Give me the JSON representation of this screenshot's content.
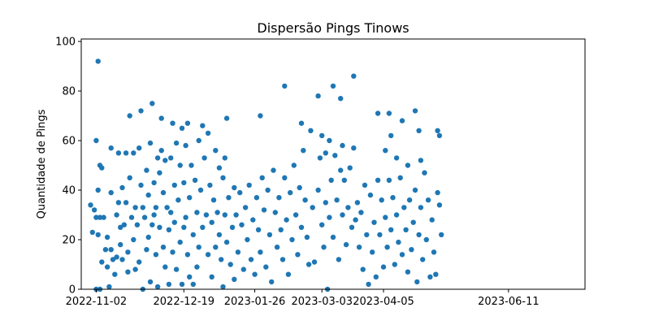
{
  "chart_data": {
    "type": "scatter",
    "title": "Dispersão Pings Tinows",
    "xlabel": "",
    "ylabel": "Quantidade de Pings",
    "x_type": "date",
    "xlim": [
      "2022-10-25",
      "2023-07-22"
    ],
    "ylim": [
      0,
      101
    ],
    "x_ticks": [
      "2022-11-02",
      "2022-12-19",
      "2023-01-26",
      "2023-03-03",
      "2023-04-05",
      "2023-06-11"
    ],
    "y_ticks": [
      0,
      20,
      40,
      60,
      80,
      100
    ],
    "grid": false,
    "legend": "none",
    "marker_color": "#1f77b4",
    "series": [
      {
        "points": [
          [
            "2022-10-30",
            34
          ],
          [
            "2022-10-31",
            23
          ],
          [
            "2022-11-01",
            32
          ],
          [
            "2022-11-02",
            60
          ],
          [
            "2022-11-02",
            29
          ],
          [
            "2022-11-02",
            0
          ],
          [
            "2022-11-03",
            40
          ],
          [
            "2022-11-03",
            92
          ],
          [
            "2022-11-03",
            22
          ],
          [
            "2022-11-04",
            50
          ],
          [
            "2022-11-04",
            29
          ],
          [
            "2022-11-04",
            0
          ],
          [
            "2022-11-05",
            49
          ],
          [
            "2022-11-05",
            11
          ],
          [
            "2022-11-06",
            29
          ],
          [
            "2022-11-07",
            16
          ],
          [
            "2022-11-08",
            9
          ],
          [
            "2022-11-08",
            21
          ],
          [
            "2022-11-09",
            1
          ],
          [
            "2022-11-10",
            57
          ],
          [
            "2022-11-10",
            39
          ],
          [
            "2022-11-10",
            16
          ],
          [
            "2022-11-11",
            12
          ],
          [
            "2022-11-12",
            6
          ],
          [
            "2022-11-13",
            30
          ],
          [
            "2022-11-13",
            13
          ],
          [
            "2022-11-14",
            55
          ],
          [
            "2022-11-14",
            35
          ],
          [
            "2022-11-15",
            25
          ],
          [
            "2022-11-15",
            18
          ],
          [
            "2022-11-16",
            41
          ],
          [
            "2022-11-16",
            12
          ],
          [
            "2022-11-17",
            26
          ],
          [
            "2022-11-18",
            55
          ],
          [
            "2022-11-18",
            35
          ],
          [
            "2022-11-19",
            15
          ],
          [
            "2022-11-19",
            7
          ],
          [
            "2022-11-20",
            70
          ],
          [
            "2022-11-20",
            45
          ],
          [
            "2022-11-21",
            29
          ],
          [
            "2022-11-22",
            55
          ],
          [
            "2022-11-22",
            20
          ],
          [
            "2022-11-23",
            33
          ],
          [
            "2022-11-23",
            8
          ],
          [
            "2022-11-24",
            26
          ],
          [
            "2022-11-25",
            57
          ],
          [
            "2022-11-25",
            11
          ],
          [
            "2022-11-26",
            72
          ],
          [
            "2022-11-26",
            42
          ],
          [
            "2022-11-27",
            33
          ],
          [
            "2022-11-27",
            0
          ],
          [
            "2022-11-28",
            29
          ],
          [
            "2022-11-29",
            48
          ],
          [
            "2022-11-29",
            16
          ],
          [
            "2022-11-30",
            38
          ],
          [
            "2022-11-30",
            21
          ],
          [
            "2022-12-01",
            59
          ],
          [
            "2022-12-01",
            3
          ],
          [
            "2022-12-02",
            75
          ],
          [
            "2022-12-02",
            26
          ],
          [
            "2022-12-03",
            43
          ],
          [
            "2022-12-03",
            30
          ],
          [
            "2022-12-04",
            33
          ],
          [
            "2022-12-04",
            14
          ],
          [
            "2022-12-05",
            53
          ],
          [
            "2022-12-05",
            1
          ],
          [
            "2022-12-06",
            47
          ],
          [
            "2022-12-06",
            25
          ],
          [
            "2022-12-07",
            69
          ],
          [
            "2022-12-07",
            56
          ],
          [
            "2022-12-08",
            39
          ],
          [
            "2022-12-08",
            17
          ],
          [
            "2022-12-09",
            52
          ],
          [
            "2022-12-09",
            9
          ],
          [
            "2022-12-10",
            33
          ],
          [
            "2022-12-11",
            24
          ],
          [
            "2022-12-11",
            2
          ],
          [
            "2022-12-12",
            53
          ],
          [
            "2022-12-12",
            31
          ],
          [
            "2022-12-13",
            67
          ],
          [
            "2022-12-13",
            15
          ],
          [
            "2022-12-14",
            42
          ],
          [
            "2022-12-14",
            27
          ],
          [
            "2022-12-15",
            59
          ],
          [
            "2022-12-15",
            8
          ],
          [
            "2022-12-16",
            36
          ],
          [
            "2022-12-17",
            50
          ],
          [
            "2022-12-17",
            19
          ],
          [
            "2022-12-18",
            65
          ],
          [
            "2022-12-18",
            2
          ],
          [
            "2022-12-19",
            43
          ],
          [
            "2022-12-19",
            25
          ],
          [
            "2022-12-20",
            58
          ],
          [
            "2022-12-20",
            29
          ],
          [
            "2022-12-21",
            67
          ],
          [
            "2022-12-21",
            14
          ],
          [
            "2022-12-22",
            37
          ],
          [
            "2022-12-22",
            5
          ],
          [
            "2022-12-23",
            50
          ],
          [
            "2022-12-24",
            22
          ],
          [
            "2022-12-24",
            2
          ],
          [
            "2022-12-25",
            44
          ],
          [
            "2022-12-26",
            31
          ],
          [
            "2022-12-26",
            9
          ],
          [
            "2022-12-27",
            60
          ],
          [
            "2022-12-27",
            17
          ],
          [
            "2022-12-28",
            40
          ],
          [
            "2022-12-29",
            66
          ],
          [
            "2022-12-29",
            25
          ],
          [
            "2022-12-30",
            53
          ],
          [
            "2022-12-31",
            30
          ],
          [
            "2023-01-01",
            63
          ],
          [
            "2023-01-01",
            14
          ],
          [
            "2023-01-02",
            42
          ],
          [
            "2023-01-03",
            5
          ],
          [
            "2023-01-03",
            27
          ],
          [
            "2023-01-04",
            36
          ],
          [
            "2023-01-05",
            56
          ],
          [
            "2023-01-05",
            17
          ],
          [
            "2023-01-06",
            31
          ],
          [
            "2023-01-07",
            49
          ],
          [
            "2023-01-07",
            22
          ],
          [
            "2023-01-08",
            12
          ],
          [
            "2023-01-09",
            45
          ],
          [
            "2023-01-09",
            1
          ],
          [
            "2023-01-10",
            53
          ],
          [
            "2023-01-10",
            30
          ],
          [
            "2023-01-11",
            69
          ],
          [
            "2023-01-11",
            19
          ],
          [
            "2023-01-12",
            37
          ],
          [
            "2023-01-13",
            10
          ],
          [
            "2023-01-14",
            25
          ],
          [
            "2023-01-15",
            41
          ],
          [
            "2023-01-15",
            4
          ],
          [
            "2023-01-16",
            30
          ],
          [
            "2023-01-17",
            15
          ],
          [
            "2023-01-18",
            39
          ],
          [
            "2023-01-19",
            26
          ],
          [
            "2023-01-20",
            8
          ],
          [
            "2023-01-21",
            33
          ],
          [
            "2023-01-22",
            20
          ],
          [
            "2023-01-23",
            42
          ],
          [
            "2023-01-24",
            12
          ],
          [
            "2023-01-25",
            28
          ],
          [
            "2023-01-26",
            6
          ],
          [
            "2023-01-27",
            37
          ],
          [
            "2023-01-28",
            24
          ],
          [
            "2023-01-29",
            70
          ],
          [
            "2023-01-29",
            15
          ],
          [
            "2023-01-30",
            45
          ],
          [
            "2023-01-31",
            32
          ],
          [
            "2023-02-01",
            9
          ],
          [
            "2023-02-02",
            40
          ],
          [
            "2023-02-03",
            22
          ],
          [
            "2023-02-04",
            3
          ],
          [
            "2023-02-05",
            48
          ],
          [
            "2023-02-06",
            31
          ],
          [
            "2023-02-07",
            17
          ],
          [
            "2023-02-08",
            37
          ],
          [
            "2023-02-09",
            24
          ],
          [
            "2023-02-10",
            12
          ],
          [
            "2023-02-11",
            82
          ],
          [
            "2023-02-11",
            45
          ],
          [
            "2023-02-12",
            28
          ],
          [
            "2023-02-13",
            6
          ],
          [
            "2023-02-14",
            39
          ],
          [
            "2023-02-15",
            20
          ],
          [
            "2023-02-16",
            50
          ],
          [
            "2023-02-17",
            30
          ],
          [
            "2023-02-18",
            14
          ],
          [
            "2023-02-19",
            41
          ],
          [
            "2023-02-20",
            67
          ],
          [
            "2023-02-20",
            25
          ],
          [
            "2023-02-21",
            56
          ],
          [
            "2023-02-22",
            36
          ],
          [
            "2023-02-23",
            21
          ],
          [
            "2023-02-24",
            10
          ],
          [
            "2023-02-25",
            64
          ],
          [
            "2023-02-26",
            33
          ],
          [
            "2023-02-27",
            11
          ],
          [
            "2023-03-01",
            78
          ],
          [
            "2023-03-01",
            40
          ],
          [
            "2023-03-02",
            53
          ],
          [
            "2023-03-03",
            62
          ],
          [
            "2023-03-03",
            26
          ],
          [
            "2023-03-04",
            17
          ],
          [
            "2023-03-05",
            55
          ],
          [
            "2023-03-05",
            35
          ],
          [
            "2023-03-06",
            0
          ],
          [
            "2023-03-07",
            60
          ],
          [
            "2023-03-07",
            29
          ],
          [
            "2023-03-08",
            44
          ],
          [
            "2023-03-09",
            82
          ],
          [
            "2023-03-09",
            21
          ],
          [
            "2023-03-10",
            54
          ],
          [
            "2023-03-11",
            36
          ],
          [
            "2023-03-12",
            12
          ],
          [
            "2023-03-13",
            77
          ],
          [
            "2023-03-13",
            48
          ],
          [
            "2023-03-14",
            58
          ],
          [
            "2023-03-14",
            30
          ],
          [
            "2023-03-15",
            44
          ],
          [
            "2023-03-16",
            18
          ],
          [
            "2023-03-17",
            33
          ],
          [
            "2023-03-18",
            49
          ],
          [
            "2023-03-19",
            25
          ],
          [
            "2023-03-20",
            86
          ],
          [
            "2023-03-20",
            57
          ],
          [
            "2023-03-21",
            28
          ],
          [
            "2023-03-22",
            35
          ],
          [
            "2023-03-23",
            17
          ],
          [
            "2023-03-24",
            31
          ],
          [
            "2023-03-25",
            8
          ],
          [
            "2023-03-26",
            42
          ],
          [
            "2023-03-27",
            22
          ],
          [
            "2023-03-28",
            2
          ],
          [
            "2023-03-29",
            38
          ],
          [
            "2023-03-30",
            15
          ],
          [
            "2023-03-31",
            27
          ],
          [
            "2023-04-01",
            5
          ],
          [
            "2023-04-02",
            71
          ],
          [
            "2023-04-02",
            44
          ],
          [
            "2023-04-03",
            22
          ],
          [
            "2023-04-04",
            36
          ],
          [
            "2023-04-05",
            9
          ],
          [
            "2023-04-06",
            56
          ],
          [
            "2023-04-06",
            29
          ],
          [
            "2023-04-07",
            17
          ],
          [
            "2023-04-08",
            71
          ],
          [
            "2023-04-08",
            44
          ],
          [
            "2023-04-09",
            62
          ],
          [
            "2023-04-09",
            24
          ],
          [
            "2023-04-10",
            37
          ],
          [
            "2023-04-11",
            10
          ],
          [
            "2023-04-12",
            53
          ],
          [
            "2023-04-12",
            30
          ],
          [
            "2023-04-13",
            19
          ],
          [
            "2023-04-14",
            45
          ],
          [
            "2023-04-15",
            68
          ],
          [
            "2023-04-15",
            14
          ],
          [
            "2023-04-16",
            33
          ],
          [
            "2023-04-17",
            24
          ],
          [
            "2023-04-18",
            50
          ],
          [
            "2023-04-18",
            7
          ],
          [
            "2023-04-19",
            36
          ],
          [
            "2023-04-20",
            16
          ],
          [
            "2023-04-21",
            27
          ],
          [
            "2023-04-22",
            72
          ],
          [
            "2023-04-22",
            40
          ],
          [
            "2023-04-23",
            3
          ],
          [
            "2023-04-24",
            64
          ],
          [
            "2023-04-24",
            22
          ],
          [
            "2023-04-25",
            52
          ],
          [
            "2023-04-25",
            33
          ],
          [
            "2023-04-26",
            12
          ],
          [
            "2023-04-27",
            47
          ],
          [
            "2023-04-28",
            20
          ],
          [
            "2023-04-29",
            36
          ],
          [
            "2023-04-30",
            5
          ],
          [
            "2023-05-01",
            28
          ],
          [
            "2023-05-02",
            15
          ],
          [
            "2023-05-03",
            6
          ],
          [
            "2023-05-04",
            64
          ],
          [
            "2023-05-04",
            39
          ],
          [
            "2023-05-05",
            62
          ],
          [
            "2023-05-05",
            34
          ],
          [
            "2023-05-06",
            22
          ]
        ]
      }
    ]
  }
}
